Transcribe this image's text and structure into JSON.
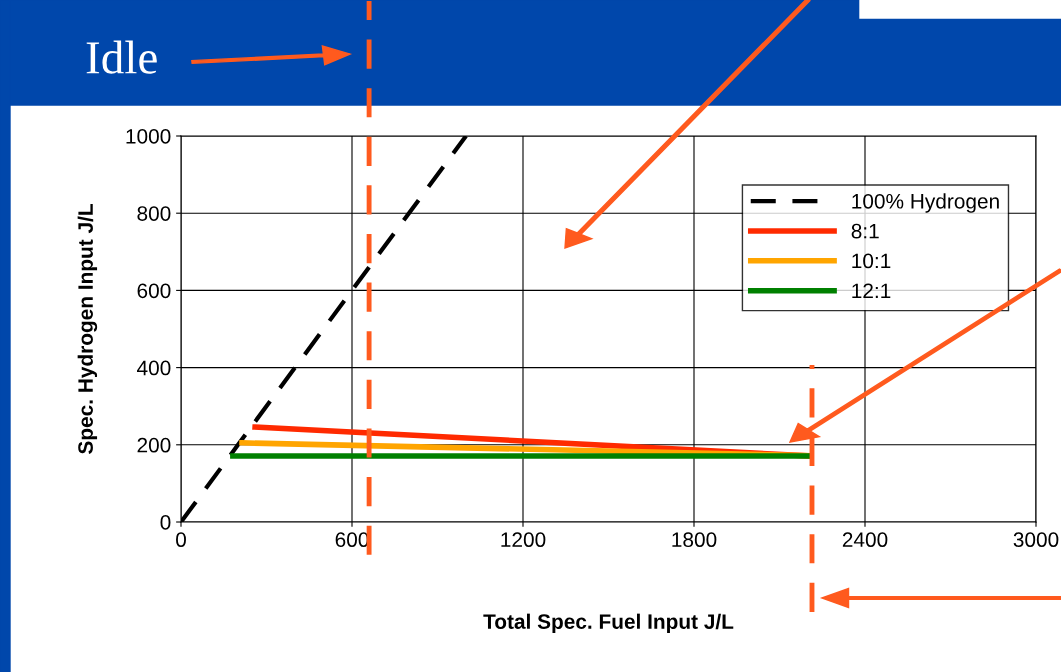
{
  "chart_data": {
    "type": "line",
    "xlabel": "Total Spec. Fuel Input J/L",
    "ylabel": "Spec. Hydrogen Input J/L",
    "series": [
      {
        "name": "100% Hydrogen",
        "color": "#000000",
        "line_style": "dashed",
        "x": [
          0,
          1000
        ],
        "values": [
          0,
          1000
        ]
      },
      {
        "name": "8:1",
        "color": "#ff2a00",
        "x": [
          260,
          2207
        ],
        "values": [
          246,
          171
        ]
      },
      {
        "name": "10:1",
        "color": "#ffa500",
        "x": [
          214,
          2207
        ],
        "values": [
          205,
          172
        ]
      },
      {
        "name": "12:1",
        "color": "#008000",
        "x": [
          182,
          2207
        ],
        "values": [
          171,
          171
        ]
      }
    ],
    "xlim": [
      0,
      3000
    ],
    "xticks": [
      0,
      600,
      1200,
      1800,
      2400,
      3000
    ],
    "ylim": [
      0,
      1000
    ],
    "yticks": [
      0,
      200,
      400,
      600,
      800,
      1000
    ],
    "ref_lines": [
      {
        "axis": "x",
        "value": 660,
        "color": "#ff5a1e",
        "line_style": "dashed"
      },
      {
        "axis": "x",
        "value": 2214,
        "color": "#ff5a1e",
        "line_style": "dashed"
      }
    ],
    "annotations": [
      "Idle"
    ],
    "grid": true,
    "legend": "top right",
    "marker": "none"
  }
}
